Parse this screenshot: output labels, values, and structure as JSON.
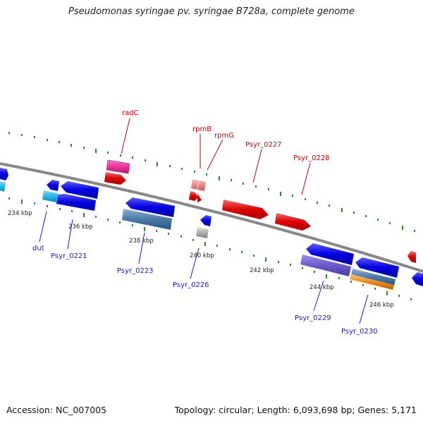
{
  "title": "Pseudomonas syringae pv. syringae B728a, complete genome",
  "footer": {
    "accession": "Accession: NC_007005",
    "summary": "Topology: circular; Length: 6,093,698 bp; Genes: 5,171"
  },
  "axis_labels": [
    "234 kbp",
    "236 kbp",
    "238 kbp",
    "240 kbp",
    "242 kbp",
    "244 kbp",
    "246 kbp"
  ],
  "genes_top": [
    "radC",
    "rpmB",
    "rpmG",
    "Psyr_0227",
    "Psyr_0228"
  ],
  "genes_bottom": [
    "dut",
    "Psyr_0221",
    "Psyr_0223",
    "Psyr_0226",
    "Psyr_0229",
    "Psyr_0230"
  ],
  "colors": {
    "backbone": "#888888",
    "tick": "#2a8a2a",
    "gene_red": "#e00000",
    "gene_blue": "#0000e0",
    "gene_magenta": "#ee3399",
    "gene_steel": "#4a7aa8",
    "gene_purple": "#6a5acd",
    "gene_cyan": "#22b8e6",
    "gene_orange": "#f08a1a",
    "gene_pink": "#ee8888",
    "gene_gray": "#aaaaaa",
    "label_red": "#cc0000",
    "label_blue": "#1a1acc"
  }
}
